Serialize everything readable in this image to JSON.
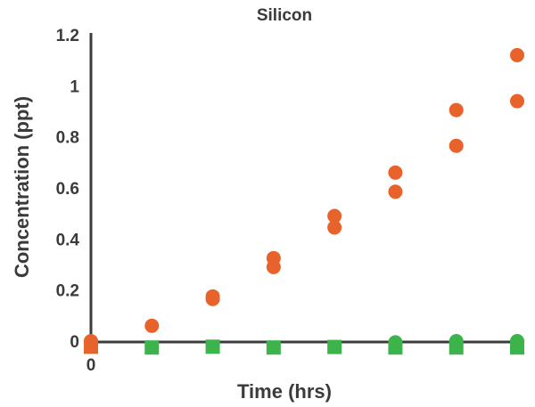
{
  "chart_data": {
    "type": "scatter",
    "title": "Silicon",
    "xlabel": "Time (hrs)",
    "ylabel": "Concentration (ppt)",
    "ylim": [
      0,
      1.2
    ],
    "xlim": [
      0,
      7
    ],
    "grid": false,
    "legend": "none",
    "y_ticks": [
      "0",
      "0.2",
      "0.4",
      "0.6",
      "0.8",
      "1",
      "1.2"
    ],
    "y_tick_values": [
      0,
      0.2,
      0.4,
      0.6,
      0.8,
      1,
      1.2
    ],
    "x_ticks": [
      "0"
    ],
    "x_tick_values": [
      0
    ],
    "colors": {
      "orange": "#e8632b",
      "green": "#3cb44b",
      "axis": "#3b3b3b",
      "text": "#3b3b3b"
    },
    "series": [
      {
        "marker": "circle",
        "color": "#e8632b",
        "points": [
          {
            "x": 0,
            "y": 0
          },
          {
            "x": 1,
            "y": 0.06
          },
          {
            "x": 2,
            "y": 0.175
          },
          {
            "x": 2,
            "y": 0.165
          },
          {
            "x": 3,
            "y": 0.325
          },
          {
            "x": 3,
            "y": 0.29
          },
          {
            "x": 4,
            "y": 0.49
          },
          {
            "x": 4,
            "y": 0.445
          },
          {
            "x": 5,
            "y": 0.66
          },
          {
            "x": 5,
            "y": 0.585
          },
          {
            "x": 6,
            "y": 0.905
          },
          {
            "x": 6,
            "y": 0.765
          },
          {
            "x": 7,
            "y": 1.12
          },
          {
            "x": 7,
            "y": 0.94
          }
        ]
      },
      {
        "marker": "circle",
        "color": "#3cb44b",
        "points": [
          {
            "x": 5,
            "y": -0.005
          },
          {
            "x": 6,
            "y": 0.0
          },
          {
            "x": 7,
            "y": 0.0
          }
        ]
      },
      {
        "marker": "square",
        "color": "#3cb44b",
        "points": [
          {
            "x": 1,
            "y": -0.025
          },
          {
            "x": 2,
            "y": -0.022
          },
          {
            "x": 3,
            "y": -0.025
          },
          {
            "x": 4,
            "y": -0.023
          },
          {
            "x": 5,
            "y": -0.025
          },
          {
            "x": 6,
            "y": -0.025
          },
          {
            "x": 7,
            "y": -0.025
          }
        ]
      },
      {
        "marker": "square",
        "color": "#e8632b",
        "points": [
          {
            "x": 0,
            "y": -0.022
          }
        ]
      }
    ]
  }
}
